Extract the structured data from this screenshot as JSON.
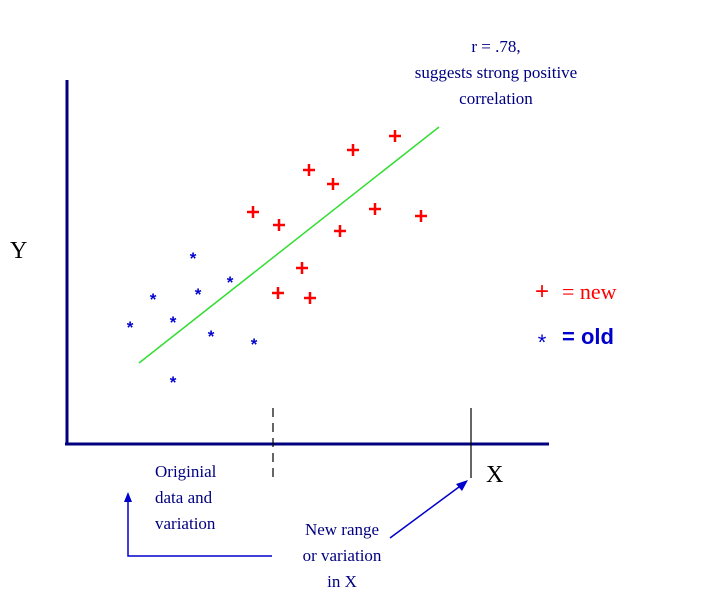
{
  "chart_data": {
    "type": "scatter",
    "xlabel": "X",
    "ylabel": "Y",
    "grid": false,
    "legend_position": "right",
    "series": [
      {
        "name": "= new",
        "marker": "+",
        "color": "#ff0000",
        "points": [
          [
            253,
            212
          ],
          [
            279,
            225
          ],
          [
            309,
            170
          ],
          [
            333,
            184
          ],
          [
            353,
            150
          ],
          [
            395,
            136
          ],
          [
            375,
            209
          ],
          [
            421,
            216
          ],
          [
            340,
            231
          ],
          [
            302,
            268
          ],
          [
            278,
            293
          ],
          [
            310,
            298
          ]
        ]
      },
      {
        "name": "= old",
        "marker": "*",
        "color": "#0000cc",
        "points": [
          [
            193,
            256
          ],
          [
            230,
            280
          ],
          [
            153,
            297
          ],
          [
            198,
            292
          ],
          [
            130,
            325
          ],
          [
            173,
            320
          ],
          [
            211,
            334
          ],
          [
            254,
            342
          ],
          [
            173,
            380
          ]
        ]
      }
    ],
    "annotations": {
      "correlation": [
        "r = .78,",
        "suggests strong positive",
        "correlation"
      ],
      "original": [
        "Originial",
        "data and",
        "variation"
      ],
      "new_range": [
        "New range",
        "or variation",
        "in X"
      ]
    }
  },
  "colors": {
    "axis": "#000080",
    "new": "#ff0000",
    "old": "#0000cc",
    "fit_line": "#33dd33",
    "arrow": "#0000cc"
  }
}
